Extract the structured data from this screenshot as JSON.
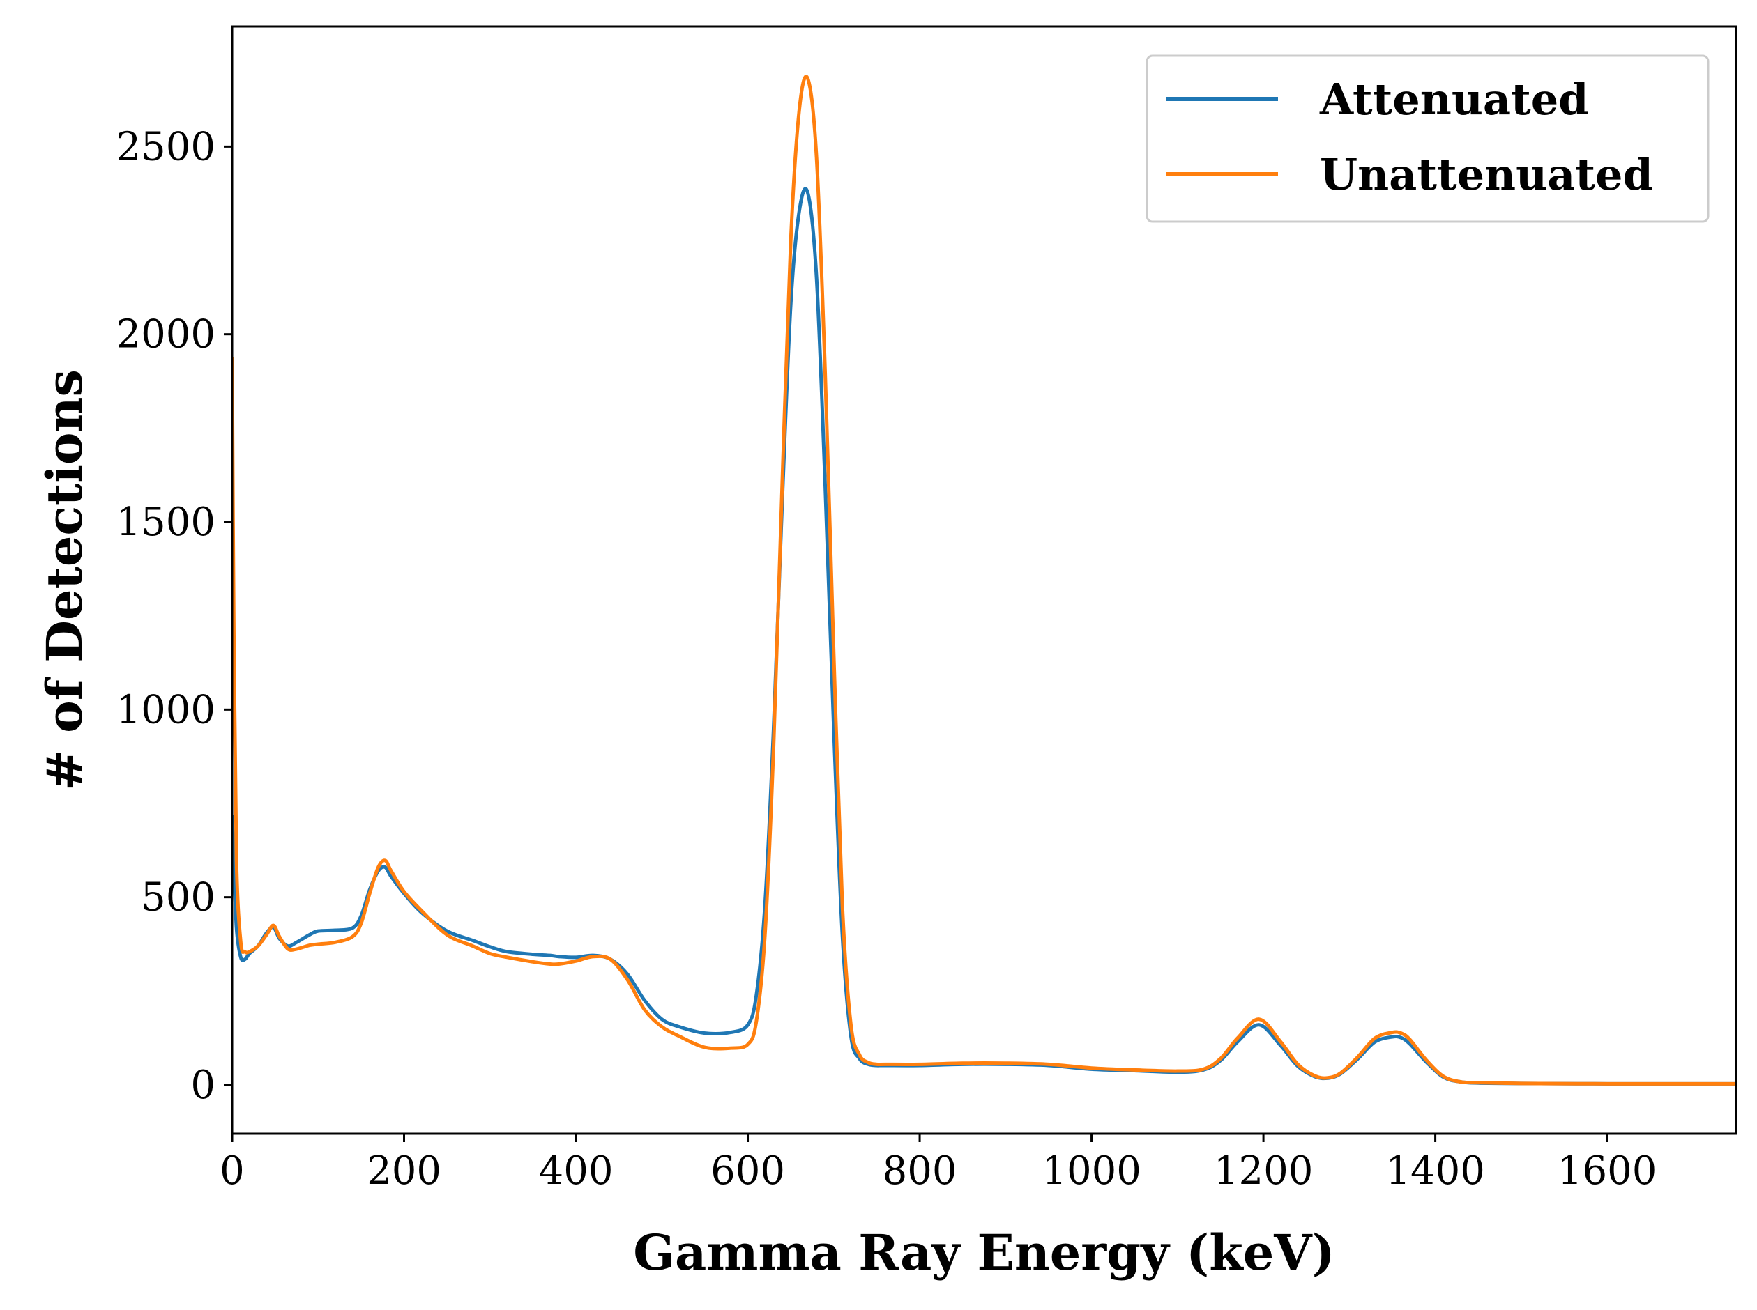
{
  "chart_data": {
    "type": "line",
    "title": "",
    "xlabel": "Gamma Ray Energy (keV)",
    "ylabel": "# of Detections",
    "xlim": [
      0,
      1750
    ],
    "ylim": [
      -130,
      2820
    ],
    "xticks": [
      0,
      200,
      400,
      600,
      800,
      1000,
      1200,
      1400,
      1600
    ],
    "yticks": [
      0,
      500,
      1000,
      1500,
      2000,
      2500
    ],
    "xtick_labels": [
      "0",
      "200",
      "400",
      "600",
      "800",
      "1000",
      "1200",
      "1400",
      "1600"
    ],
    "ytick_labels": [
      "0",
      "500",
      "1000",
      "1500",
      "2000",
      "2500"
    ],
    "grid": false,
    "legend_position": "top-right",
    "series": [
      {
        "name": "Attenuated",
        "color": "#1f77b4",
        "x": [
          0,
          2,
          5,
          10,
          15,
          20,
          30,
          40,
          48,
          55,
          65,
          75,
          90,
          100,
          120,
          140,
          150,
          160,
          170,
          178,
          185,
          200,
          220,
          250,
          280,
          300,
          320,
          350,
          370,
          380,
          400,
          420,
          440,
          460,
          480,
          500,
          520,
          550,
          580,
          600,
          610,
          620,
          630,
          640,
          650,
          660,
          670,
          680,
          690,
          700,
          710,
          720,
          730,
          740,
          750,
          760,
          800,
          850,
          900,
          950,
          1000,
          1050,
          1100,
          1130,
          1150,
          1170,
          1195,
          1220,
          1240,
          1260,
          1275,
          1290,
          1310,
          1330,
          1350,
          1360,
          1370,
          1390,
          1410,
          1430,
          1450,
          1500,
          1600,
          1700,
          1750
        ],
        "y": [
          720,
          600,
          420,
          340,
          335,
          350,
          370,
          405,
          420,
          390,
          370,
          380,
          400,
          410,
          412,
          418,
          450,
          520,
          570,
          580,
          555,
          510,
          460,
          410,
          385,
          368,
          355,
          348,
          345,
          342,
          340,
          345,
          335,
          295,
          225,
          175,
          155,
          138,
          140,
          160,
          240,
          480,
          950,
          1550,
          2080,
          2330,
          2375,
          2150,
          1600,
          950,
          400,
          130,
          70,
          55,
          52,
          52,
          52,
          55,
          55,
          52,
          42,
          38,
          34,
          40,
          65,
          115,
          160,
          105,
          50,
          22,
          18,
          30,
          70,
          115,
          128,
          126,
          110,
          60,
          20,
          8,
          5,
          4,
          3,
          3,
          3
        ]
      },
      {
        "name": "Unattenuated",
        "color": "#ff7f0e",
        "x": [
          0,
          2,
          5,
          10,
          15,
          20,
          30,
          40,
          48,
          55,
          65,
          75,
          90,
          100,
          120,
          140,
          150,
          160,
          170,
          178,
          185,
          200,
          220,
          250,
          280,
          300,
          320,
          350,
          370,
          380,
          400,
          420,
          440,
          460,
          480,
          500,
          520,
          550,
          580,
          600,
          610,
          620,
          630,
          640,
          650,
          660,
          670,
          680,
          690,
          700,
          710,
          720,
          730,
          740,
          750,
          760,
          800,
          850,
          900,
          950,
          1000,
          1050,
          1100,
          1130,
          1150,
          1170,
          1195,
          1220,
          1240,
          1260,
          1275,
          1290,
          1310,
          1330,
          1350,
          1360,
          1370,
          1390,
          1410,
          1430,
          1450,
          1500,
          1600,
          1700,
          1750
        ],
        "y": [
          1940,
          1200,
          600,
          380,
          355,
          355,
          370,
          400,
          425,
          395,
          362,
          362,
          372,
          375,
          380,
          395,
          430,
          510,
          580,
          598,
          570,
          515,
          465,
          400,
          370,
          350,
          340,
          328,
          322,
          322,
          330,
          342,
          335,
          280,
          200,
          155,
          130,
          100,
          98,
          108,
          170,
          400,
          900,
          1600,
          2250,
          2600,
          2680,
          2470,
          1900,
          1150,
          480,
          160,
          80,
          60,
          55,
          55,
          55,
          58,
          58,
          55,
          45,
          40,
          37,
          42,
          70,
          125,
          175,
          115,
          55,
          24,
          19,
          32,
          75,
          125,
          140,
          138,
          122,
          65,
          22,
          8,
          6,
          4,
          3,
          3,
          3
        ]
      }
    ]
  }
}
